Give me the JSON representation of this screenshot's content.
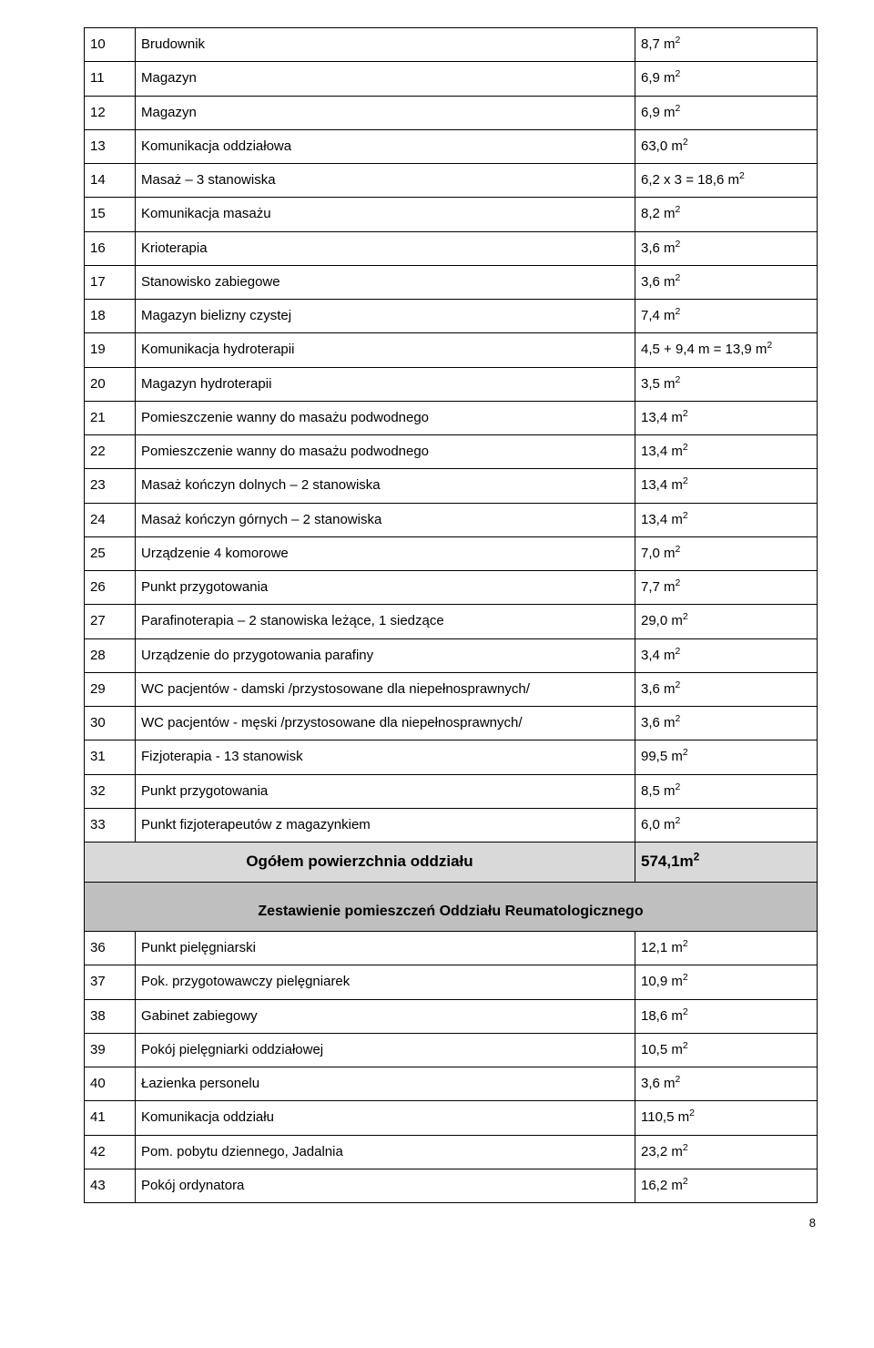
{
  "rows1": [
    {
      "n": "10",
      "d": "Brudownik",
      "v": "8,7 m"
    },
    {
      "n": "11",
      "d": "Magazyn",
      "v": "6,9 m"
    },
    {
      "n": "12",
      "d": "Magazyn",
      "v": "6,9 m"
    },
    {
      "n": "13",
      "d": "Komunikacja oddziałowa",
      "v": "63,0 m"
    },
    {
      "n": "14",
      "d": "Masaż – 3 stanowiska",
      "v": "6,2 x 3 = 18,6 m"
    },
    {
      "n": "15",
      "d": "Komunikacja masażu",
      "v": "8,2 m"
    },
    {
      "n": "16",
      "d": "Krioterapia",
      "v": "3,6 m"
    },
    {
      "n": "17",
      "d": "Stanowisko zabiegowe",
      "v": "3,6 m"
    },
    {
      "n": "18",
      "d": "Magazyn bielizny czystej",
      "v": "7,4 m"
    },
    {
      "n": "19",
      "d": "Komunikacja hydroterapii",
      "v": "4,5 + 9,4 m = 13,9 m"
    },
    {
      "n": "20",
      "d": "Magazyn hydroterapii",
      "v": "3,5 m"
    },
    {
      "n": "21",
      "d": "Pomieszczenie wanny do masażu podwodnego",
      "v": "13,4 m"
    },
    {
      "n": "22",
      "d": "Pomieszczenie wanny do masażu podwodnego",
      "v": "13,4 m"
    },
    {
      "n": "23",
      "d": "Masaż kończyn dolnych – 2 stanowiska",
      "v": "13,4 m"
    },
    {
      "n": "24",
      "d": "Masaż kończyn górnych – 2 stanowiska",
      "v": "13,4 m"
    },
    {
      "n": "25",
      "d": "Urządzenie 4 komorowe",
      "v": "7,0 m"
    },
    {
      "n": "26",
      "d": "Punkt przygotowania",
      "v": "7,7 m"
    },
    {
      "n": "27",
      "d": "Parafinoterapia – 2 stanowiska leżące, 1 siedzące",
      "v": "29,0 m"
    },
    {
      "n": "28",
      "d": "Urządzenie do przygotowania parafiny",
      "v": "3,4 m"
    },
    {
      "n": "29",
      "d": "WC pacjentów - damski  /przystosowane dla niepełnosprawnych/",
      "v": "3,6 m"
    },
    {
      "n": "30",
      "d": "WC pacjentów - męski  /przystosowane dla niepełnosprawnych/",
      "v": "3,6 m"
    },
    {
      "n": "31",
      "d": "Fizjoterapia - 13 stanowisk",
      "v": "99,5 m"
    },
    {
      "n": "32",
      "d": "Punkt przygotowania",
      "v": "8,5 m"
    },
    {
      "n": "33",
      "d": "Punkt  fizjoterapeutów z magazynkiem",
      "v": "6,0 m"
    }
  ],
  "total": {
    "label": "Ogółem powierzchnia oddziału",
    "value": "574,1m"
  },
  "subheader": "Zestawienie pomieszczeń Oddziału Reumatologicznego",
  "rows2": [
    {
      "n": "36",
      "d": "Punkt pielęgniarski",
      "v": "12,1 m"
    },
    {
      "n": "37",
      "d": "Pok. przygotowawczy pielęgniarek",
      "v": "10,9 m"
    },
    {
      "n": "38",
      "d": "Gabinet zabiegowy",
      "v": "18,6 m"
    },
    {
      "n": "39",
      "d": "Pokój pielęgniarki oddziałowej",
      "v": "10,5 m"
    },
    {
      "n": "40",
      "d": "Łazienka personelu",
      "v": "3,6 m"
    },
    {
      "n": "41",
      "d": "Komunikacja oddziału",
      "v": "110,5 m"
    },
    {
      "n": "42",
      "d": "Pom. pobytu dziennego, Jadalnia",
      "v": "23,2 m"
    },
    {
      "n": "43",
      "d": "Pokój ordynatora",
      "v": "16,2 m"
    }
  ],
  "pageNumber": "8"
}
